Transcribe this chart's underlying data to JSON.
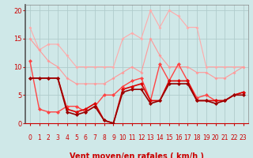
{
  "background_color": "#cfe8e8",
  "grid_color": "#b0cccc",
  "xlabel": "Vent moyen/en rafales ( km/h )",
  "xlabel_color": "#cc0000",
  "tick_color": "#cc0000",
  "ylim": [
    0,
    21
  ],
  "xlim": [
    -0.5,
    23.5
  ],
  "yticks": [
    0,
    5,
    10,
    15,
    20
  ],
  "xticks": [
    0,
    1,
    2,
    3,
    4,
    5,
    6,
    7,
    8,
    9,
    10,
    11,
    12,
    13,
    14,
    15,
    16,
    17,
    18,
    19,
    20,
    21,
    22,
    23
  ],
  "series": [
    {
      "x": [
        0,
        1,
        2,
        3,
        4,
        5,
        6,
        7,
        8,
        9,
        10,
        11,
        12,
        13,
        14,
        15,
        16,
        17,
        18,
        19,
        20,
        21,
        22,
        23
      ],
      "y": [
        17,
        13,
        14,
        14,
        12,
        10,
        10,
        10,
        10,
        10,
        15,
        16,
        15,
        20,
        17,
        20,
        19,
        17,
        17,
        10,
        10,
        10,
        10,
        10
      ],
      "color": "#ffaaaa",
      "lw": 0.8,
      "ms": 2.0
    },
    {
      "x": [
        0,
        1,
        2,
        3,
        4,
        5,
        6,
        7,
        8,
        9,
        10,
        11,
        12,
        13,
        14,
        15,
        16,
        17,
        18,
        19,
        20,
        21,
        22,
        23
      ],
      "y": [
        15,
        13,
        11,
        10,
        8,
        7,
        7,
        7,
        7,
        8,
        9,
        10,
        9,
        15,
        12,
        10,
        10,
        10,
        9,
        9,
        8,
        8,
        9,
        10
      ],
      "color": "#ff9999",
      "lw": 0.8,
      "ms": 2.0
    },
    {
      "x": [
        0,
        1,
        2,
        3,
        4,
        5,
        6,
        7,
        8,
        9,
        10,
        11,
        12,
        13,
        14,
        15,
        16,
        17,
        18,
        19,
        20,
        21,
        22,
        23
      ],
      "y": [
        11,
        2.5,
        2,
        2,
        3,
        3,
        2,
        3,
        5,
        5,
        6.5,
        7.5,
        8,
        4,
        10.5,
        7.5,
        10.5,
        7.5,
        4.5,
        5,
        4,
        4,
        5,
        5.5
      ],
      "color": "#ff4444",
      "lw": 1.0,
      "ms": 2.5
    },
    {
      "x": [
        0,
        1,
        2,
        3,
        4,
        5,
        6,
        7,
        8,
        9,
        10,
        11,
        12,
        13,
        14,
        15,
        16,
        17,
        18,
        19,
        20,
        21,
        22,
        23
      ],
      "y": [
        8,
        8,
        8,
        8,
        2.5,
        2,
        2.5,
        3.5,
        0.5,
        0,
        6,
        6.5,
        7,
        4,
        4,
        7.5,
        7.5,
        7.5,
        4,
        4,
        4,
        4,
        5,
        5.5
      ],
      "color": "#dd0000",
      "lw": 1.2,
      "ms": 2.5
    },
    {
      "x": [
        0,
        1,
        2,
        3,
        4,
        5,
        6,
        7,
        8,
        9,
        10,
        11,
        12,
        13,
        14,
        15,
        16,
        17,
        18,
        19,
        20,
        21,
        22,
        23
      ],
      "y": [
        8,
        8,
        8,
        8,
        2,
        1.5,
        2,
        3,
        0.5,
        0,
        5.5,
        6,
        6,
        3.5,
        4,
        7,
        7,
        7,
        4,
        4,
        3.5,
        4,
        5,
        5
      ],
      "color": "#990000",
      "lw": 1.2,
      "ms": 2.5
    }
  ],
  "arrows": [
    "→",
    "↙",
    "→",
    "↙",
    "↗",
    "↑",
    "↗",
    "↗",
    "→",
    "→",
    "→",
    "→",
    "→",
    "→",
    "↗",
    "↗",
    "↗",
    "↗",
    "↗",
    "↗",
    "↗",
    "↗",
    "↗",
    "↗"
  ],
  "xlabel_fontsize": 7,
  "tick_fontsize": 5.5
}
